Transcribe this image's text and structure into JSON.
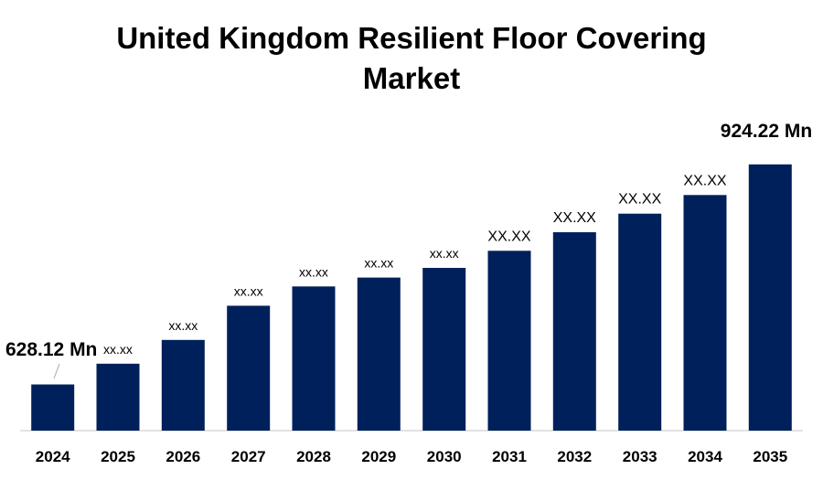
{
  "title_lines": [
    "United Kingdom Resilient Floor Covering",
    "Market"
  ],
  "colors": {
    "bar": "#00205b",
    "axis": "#d9d9d9",
    "text": "#000000"
  },
  "chart_data": {
    "type": "bar",
    "title": "United Kingdom Resilient Floor Covering Market",
    "xlabel": "",
    "ylabel": "",
    "categories": [
      "2024",
      "2025",
      "2026",
      "2027",
      "2028",
      "2029",
      "2030",
      "2031",
      "2032",
      "2033",
      "2034",
      "2035"
    ],
    "values": [
      628.12,
      656,
      688,
      734,
      760,
      772,
      785,
      808,
      833,
      858,
      883,
      924.22
    ],
    "data_labels": [
      "628.12 Mn",
      "xx.xx",
      "xx.xx",
      "xx.xx",
      "xx.xx",
      "xx.xx",
      "xx.xx",
      "XX.XX",
      "XX.XX",
      "XX.XX",
      "XX.XX",
      "924.22 Mn"
    ],
    "ylim": [
      566,
      940
    ],
    "grid": false,
    "legend": "none"
  }
}
